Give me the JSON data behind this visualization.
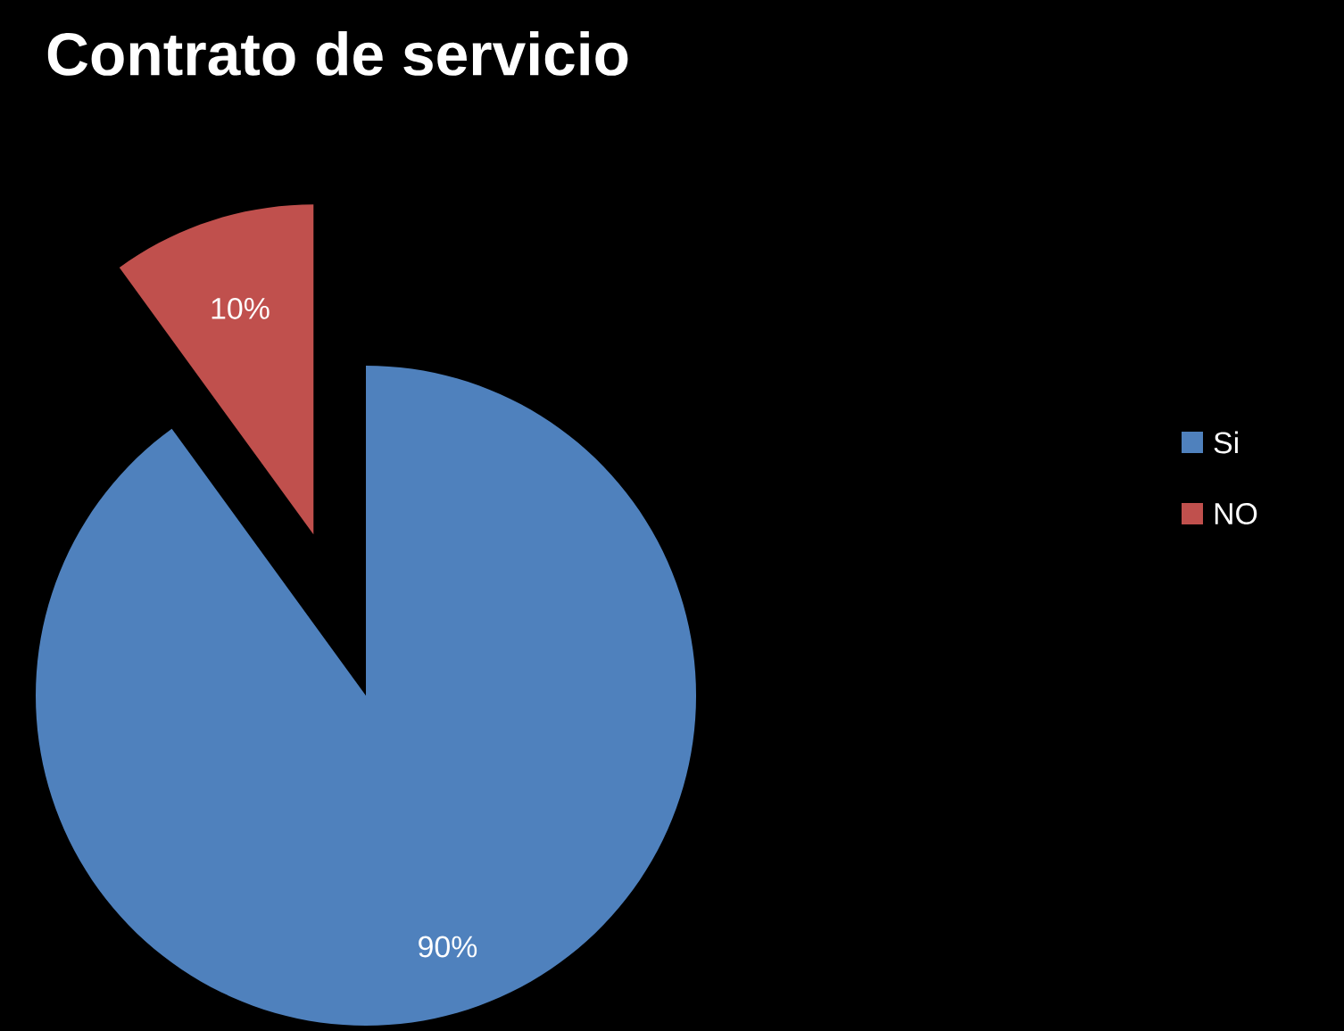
{
  "chart_data": {
    "type": "pie",
    "title": "Contrato de servicio",
    "categories": [
      "Si",
      "NO"
    ],
    "values": [
      90,
      10
    ],
    "value_labels": [
      "90%",
      "10%"
    ],
    "colors": [
      "#4f81bd",
      "#c0504d"
    ],
    "legend": "right"
  }
}
